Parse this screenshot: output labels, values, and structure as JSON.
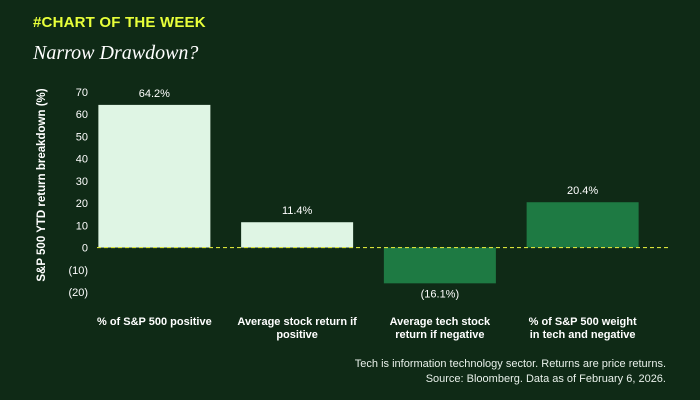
{
  "header": {
    "kicker": "#CHART OF THE WEEK",
    "title": "Narrow Drawdown?"
  },
  "footer": {
    "note_line1": "Tech is information technology sector. Returns are price returns.",
    "note_line2": "Source: Bloomberg. Data as of February 6, 2026."
  },
  "colors": {
    "background": "#0f2a16",
    "light_bar": "#dff5e4",
    "dark_bar": "#1e7a43",
    "zero_line": "#d9e23a",
    "kicker": "#e8ff3a"
  },
  "chart_data": {
    "type": "bar",
    "title": "Narrow Drawdown?",
    "ylabel": "S&P 500 YTD return breakdown (%)",
    "xlabel": "",
    "ylim": [
      -20,
      70
    ],
    "yticks": [
      70,
      60,
      50,
      40,
      30,
      20,
      10,
      0,
      -10,
      -20
    ],
    "ytick_labels": [
      "70",
      "60",
      "50",
      "40",
      "30",
      "20",
      "10",
      "0",
      "(10)",
      "(20)"
    ],
    "grid": false,
    "categories": [
      [
        "% of S&P 500 positive"
      ],
      [
        "Average stock return if",
        "positive"
      ],
      [
        "Average tech stock",
        "return if negative"
      ],
      [
        "% of S&P 500 weight",
        "in tech and negative"
      ]
    ],
    "values": [
      64.2,
      11.4,
      -16.1,
      20.4
    ],
    "value_labels": [
      "64.2%",
      "11.4%",
      "(16.1%)",
      "20.4%"
    ],
    "bar_colors": [
      "#dff5e4",
      "#dff5e4",
      "#1e7a43",
      "#1e7a43"
    ]
  }
}
